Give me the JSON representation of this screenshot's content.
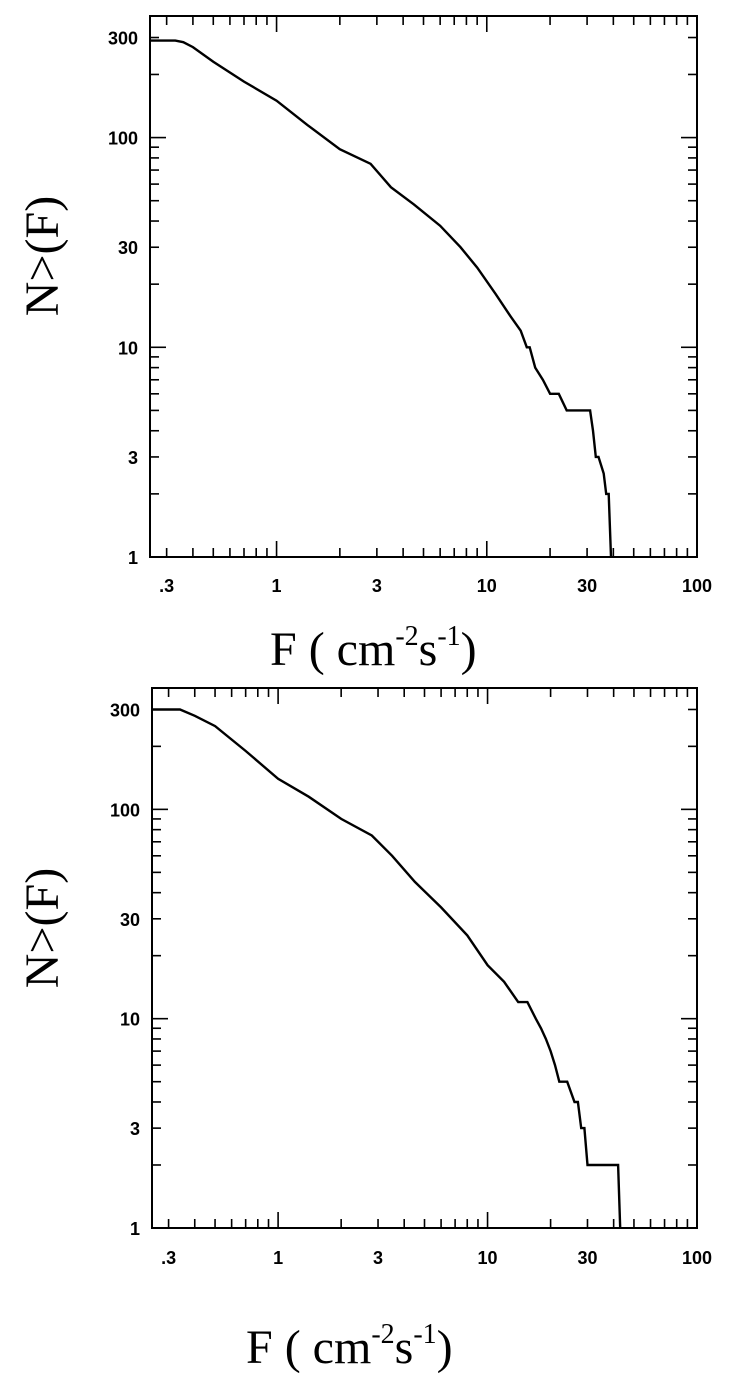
{
  "chart_data": [
    {
      "type": "line",
      "step": true,
      "xscale": "log",
      "yscale": "log",
      "xlim": [
        0.25,
        100
      ],
      "ylim": [
        1,
        380
      ],
      "xlabel": "F  ( cm-2s-1)",
      "ylabel": "N>(F)",
      "xticklabels": [
        ".3",
        "1",
        "3",
        "10",
        "30",
        "100"
      ],
      "yticklabels": [
        "1",
        "3",
        "10",
        "30",
        "100",
        "300"
      ],
      "grid": false,
      "series": [
        {
          "x": [
            0.25,
            0.3,
            0.33,
            0.36,
            0.4,
            0.5,
            0.7,
            1.0,
            1.4,
            2.0,
            2.8,
            3.5,
            4.5,
            6.0,
            7.5,
            9.0,
            11,
            13,
            14.5,
            15.5,
            16,
            17,
            18.5,
            20,
            22,
            24,
            28,
            31,
            32,
            33,
            34,
            36,
            37,
            38,
            39
          ],
          "y": [
            290,
            290,
            290,
            285,
            270,
            230,
            185,
            150,
            115,
            88,
            75,
            58,
            48,
            38,
            30,
            24,
            18,
            14,
            12,
            10,
            10,
            8,
            7,
            6,
            6,
            5,
            5,
            5,
            4,
            3,
            3,
            2.5,
            2,
            2,
            1
          ]
        }
      ]
    },
    {
      "type": "line",
      "step": true,
      "xscale": "log",
      "yscale": "log",
      "xlim": [
        0.25,
        100
      ],
      "ylim": [
        1,
        380
      ],
      "xlabel": "F  ( cm-2s-1)",
      "ylabel": "N>(F)",
      "xticklabels": [
        ".3",
        "1",
        "3",
        "10",
        "30",
        "100"
      ],
      "yticklabels": [
        "1",
        "3",
        "10",
        "30",
        "100",
        "300"
      ],
      "grid": false,
      "series": [
        {
          "x": [
            0.25,
            0.3,
            0.34,
            0.4,
            0.5,
            0.7,
            1.0,
            1.4,
            2.0,
            2.8,
            3.5,
            4.5,
            6.0,
            8.0,
            10,
            12,
            14,
            15.5,
            17,
            18,
            19,
            20,
            21,
            22,
            24,
            26,
            27,
            28,
            29,
            30,
            42,
            43
          ],
          "y": [
            300,
            300,
            300,
            280,
            250,
            190,
            140,
            115,
            90,
            75,
            60,
            45,
            34,
            25,
            18,
            15,
            12,
            12,
            10,
            9,
            8,
            7,
            6,
            5,
            5,
            4,
            4,
            3,
            3,
            2,
            2,
            1
          ]
        }
      ]
    }
  ]
}
